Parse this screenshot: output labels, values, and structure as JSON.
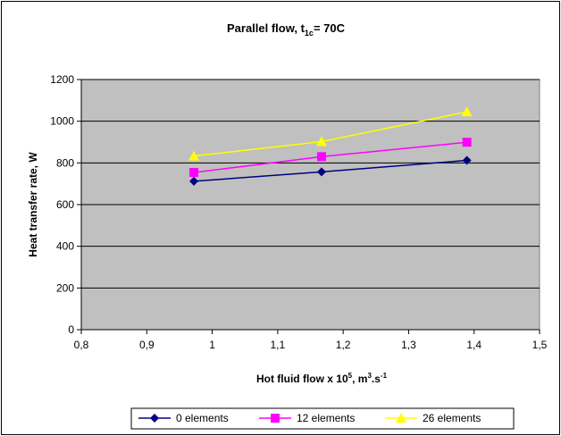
{
  "chart_data": {
    "type": "line",
    "title": {
      "main": "Parallel flow, t",
      "sub": "1c",
      "tail": "= 70C"
    },
    "xlabel": {
      "main": "Hot fluid flow x 10",
      "sup1": "5",
      "mid": ", m",
      "sup2": "3",
      "tail": ".s",
      "sup3": "-1"
    },
    "ylabel": "Heat transfer rate, W",
    "xlim": [
      0.8,
      1.5
    ],
    "ylim": [
      0,
      1200
    ],
    "x_ticks": [
      "0,8",
      "0,9",
      "1",
      "1,1",
      "1,2",
      "1,3",
      "1,4",
      "1,5"
    ],
    "y_ticks": [
      "0",
      "200",
      "400",
      "600",
      "800",
      "1000",
      "1200"
    ],
    "grid": "horizontal",
    "legend_position": "bottom",
    "x": [
      0.972,
      1.167,
      1.389
    ],
    "series": [
      {
        "name": "0 elements",
        "values": [
          712,
          757,
          812
        ],
        "color": "#000080",
        "marker": "diamond"
      },
      {
        "name": "12 elements",
        "values": [
          754,
          830,
          899
        ],
        "color": "#FF00FF",
        "marker": "square"
      },
      {
        "name": "26 elements",
        "values": [
          833,
          902,
          1045
        ],
        "color": "#FFFF00",
        "marker": "triangle"
      }
    ],
    "colors": {
      "plot_background": "#C0C0C0",
      "gridline": "#000000"
    }
  }
}
